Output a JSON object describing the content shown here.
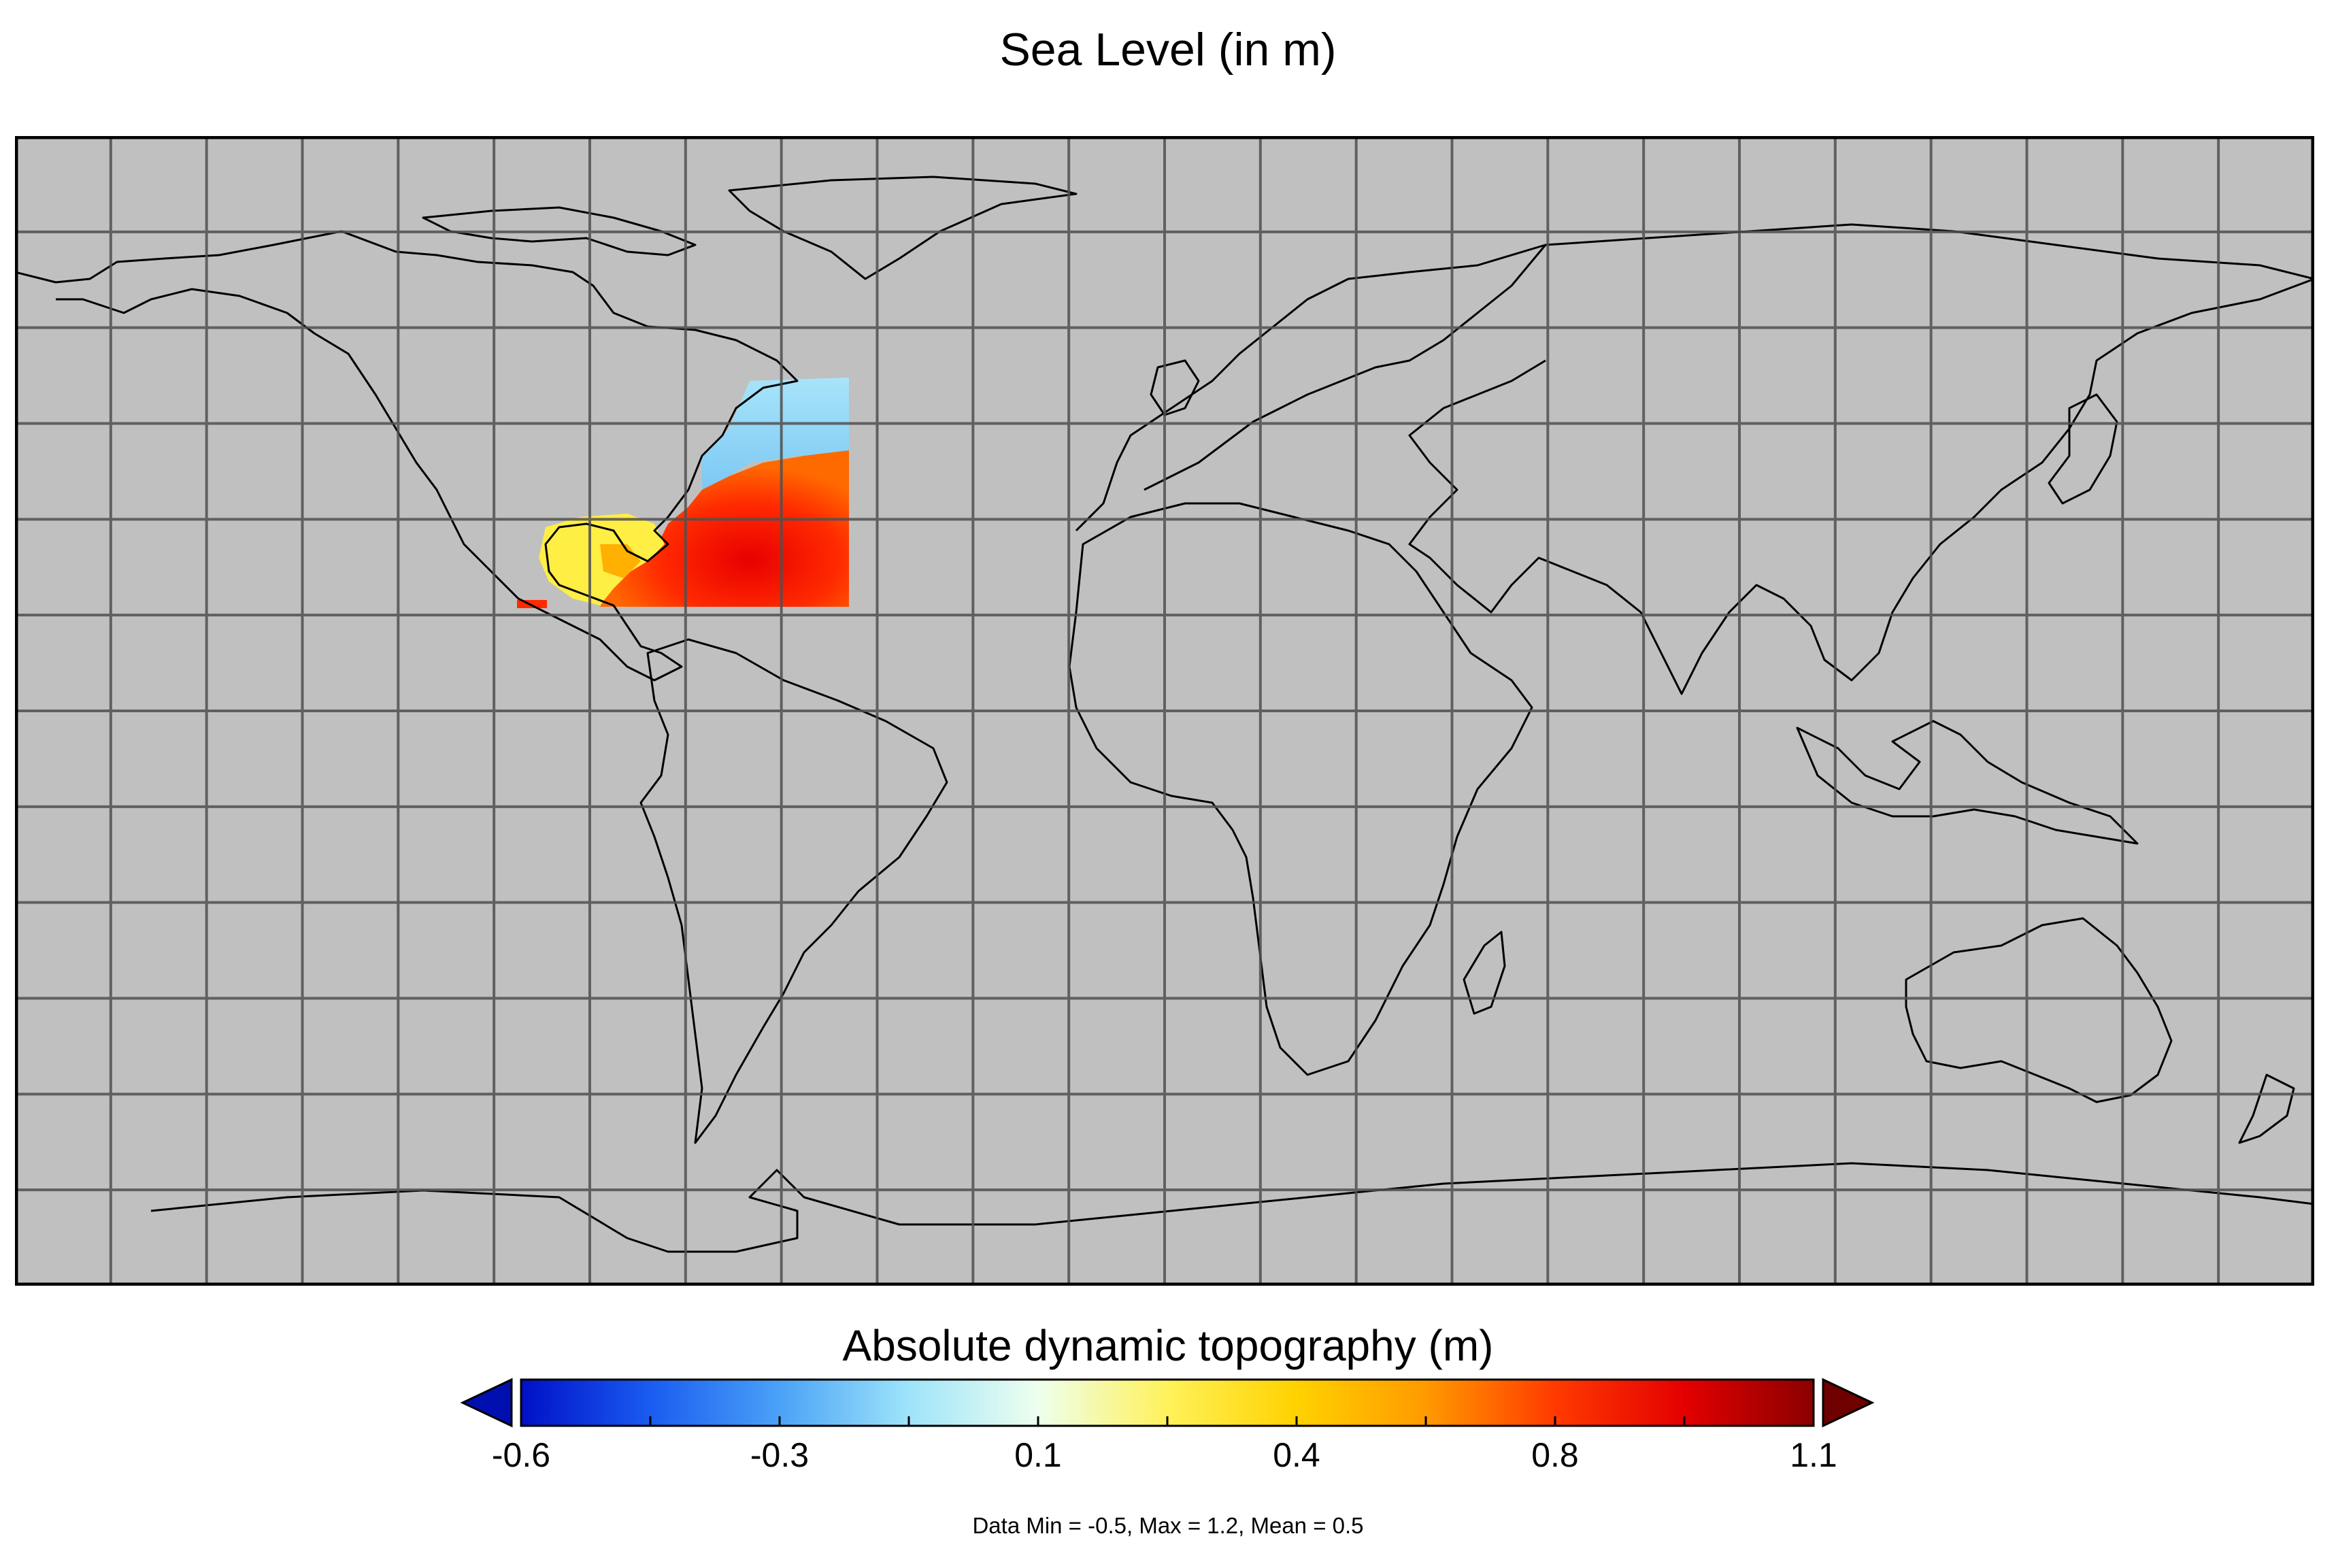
{
  "title": "Sea Level (in m)",
  "colorbar": {
    "title": "Absolute dynamic topography (m)",
    "tick_labels": [
      "-0.6",
      "-0.3",
      "0.1",
      "0.4",
      "0.8",
      "1.1"
    ],
    "min": -0.6,
    "max": 1.1,
    "extend": "both",
    "colors": [
      "#0010c8",
      "#1a5cf0",
      "#4aa2f6",
      "#9ee4fa",
      "#eeffee",
      "#fff25a",
      "#ffd200",
      "#ff9a00",
      "#ff3a00",
      "#e40000",
      "#8a0000"
    ],
    "over_color": "#6e0000",
    "under_color": "#0010b0"
  },
  "stats": "Data Min = -0.5, Max = 1.2, Mean = 0.5",
  "map": {
    "projection": "equirectangular",
    "lon_range": [
      -180,
      180
    ],
    "lat_range": [
      -90,
      90
    ],
    "grid": "on",
    "grid_spacing_deg": 15,
    "land_ocean_color": "#c0c0c0",
    "grid_color": "#505050",
    "data_region": {
      "lon_range": [
        -100,
        -50
      ],
      "lat_range": [
        10,
        45
      ]
    }
  }
}
